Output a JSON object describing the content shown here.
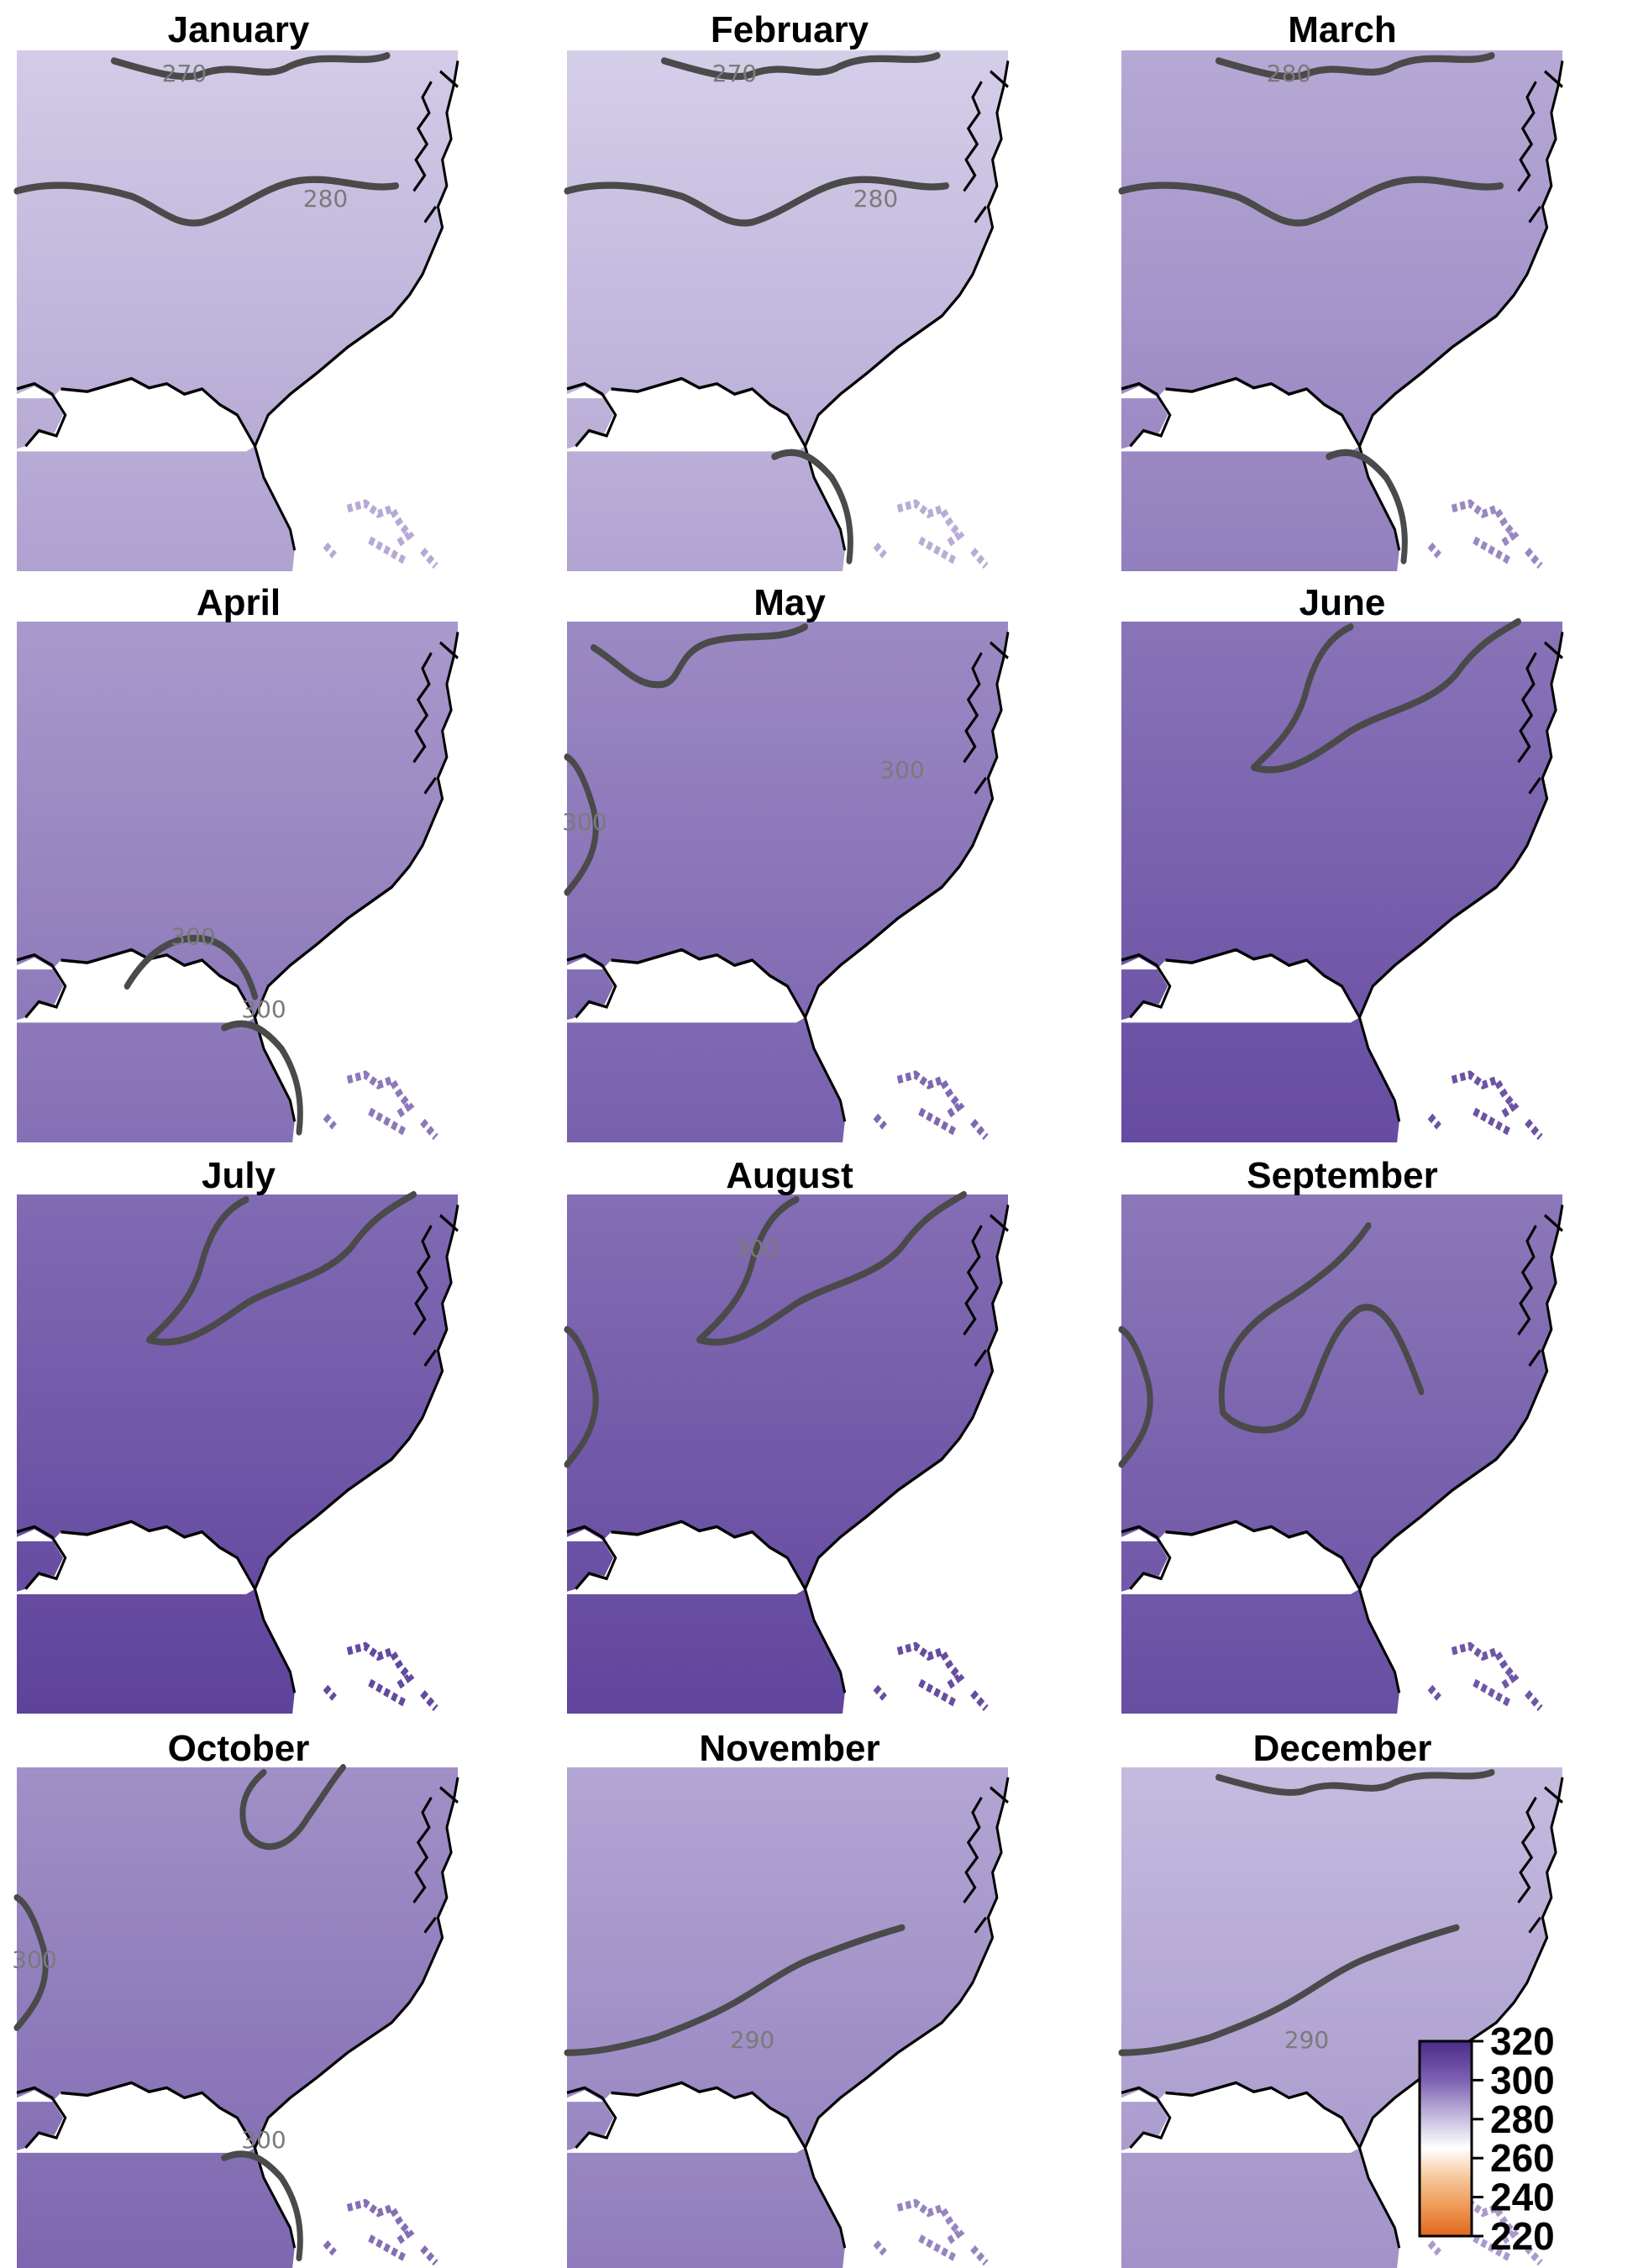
{
  "panels": [
    {
      "title": "January",
      "shade": 0.3,
      "contours": [
        {
          "level": "270",
          "type": "north"
        },
        {
          "level": "280",
          "type": "mid"
        }
      ]
    },
    {
      "title": "February",
      "shade": 0.28,
      "contours": [
        {
          "level": "270",
          "type": "north"
        },
        {
          "level": "280",
          "type": "mid"
        },
        {
          "level": "",
          "type": "florida"
        }
      ]
    },
    {
      "title": "March",
      "shade": 0.52,
      "contours": [
        {
          "level": "280",
          "type": "north"
        },
        {
          "level": "",
          "type": "mid"
        },
        {
          "level": "",
          "type": "florida"
        }
      ]
    },
    {
      "title": "April",
      "shade": 0.62,
      "contours": [
        {
          "level": "300",
          "type": "gulf"
        },
        {
          "level": "300",
          "type": "florida"
        }
      ]
    },
    {
      "title": "May",
      "shade": 0.72,
      "contours": [
        {
          "level": "300",
          "type": "may"
        },
        {
          "level": "300",
          "type": "west"
        }
      ]
    },
    {
      "title": "June",
      "shade": 0.86,
      "contours": [
        {
          "level": "",
          "type": "apps"
        }
      ]
    },
    {
      "title": "July",
      "shade": 0.92,
      "contours": [
        {
          "level": "",
          "type": "apps"
        }
      ]
    },
    {
      "title": "August",
      "shade": 0.9,
      "contours": [
        {
          "level": "300",
          "type": "apps"
        },
        {
          "level": "",
          "type": "west"
        }
      ]
    },
    {
      "title": "September",
      "shade": 0.84,
      "contours": [
        {
          "level": "",
          "type": "sept"
        },
        {
          "level": "",
          "type": "west"
        }
      ]
    },
    {
      "title": "October",
      "shade": 0.68,
      "contours": [
        {
          "level": "",
          "type": "octne"
        },
        {
          "level": "300",
          "type": "west"
        },
        {
          "level": "300",
          "type": "florida"
        }
      ]
    },
    {
      "title": "November",
      "shade": 0.54,
      "contours": [
        {
          "level": "290",
          "type": "south"
        }
      ]
    },
    {
      "title": "December",
      "shade": 0.4,
      "contours": [
        {
          "level": "",
          "type": "north"
        },
        {
          "level": "290",
          "type": "south"
        }
      ]
    }
  ],
  "colorbar": {
    "ticks": [
      "320",
      "300",
      "280",
      "260",
      "240",
      "220"
    ],
    "stops": [
      {
        "value": 320,
        "color": "#4b2a8a"
      },
      {
        "value": 300,
        "color": "#7d62b3"
      },
      {
        "value": 280,
        "color": "#c9c0e0"
      },
      {
        "value": 265,
        "color": "#ffffff"
      },
      {
        "value": 250,
        "color": "#f6c79b"
      },
      {
        "value": 235,
        "color": "#ee9a55"
      },
      {
        "value": 220,
        "color": "#e0661f"
      }
    ],
    "range": [
      220,
      320
    ]
  },
  "colors": {
    "contour": "#4a4a4a",
    "coast": "#000000",
    "light_purple": "#ddd7ee",
    "dark_purple": "#5a3d99"
  }
}
